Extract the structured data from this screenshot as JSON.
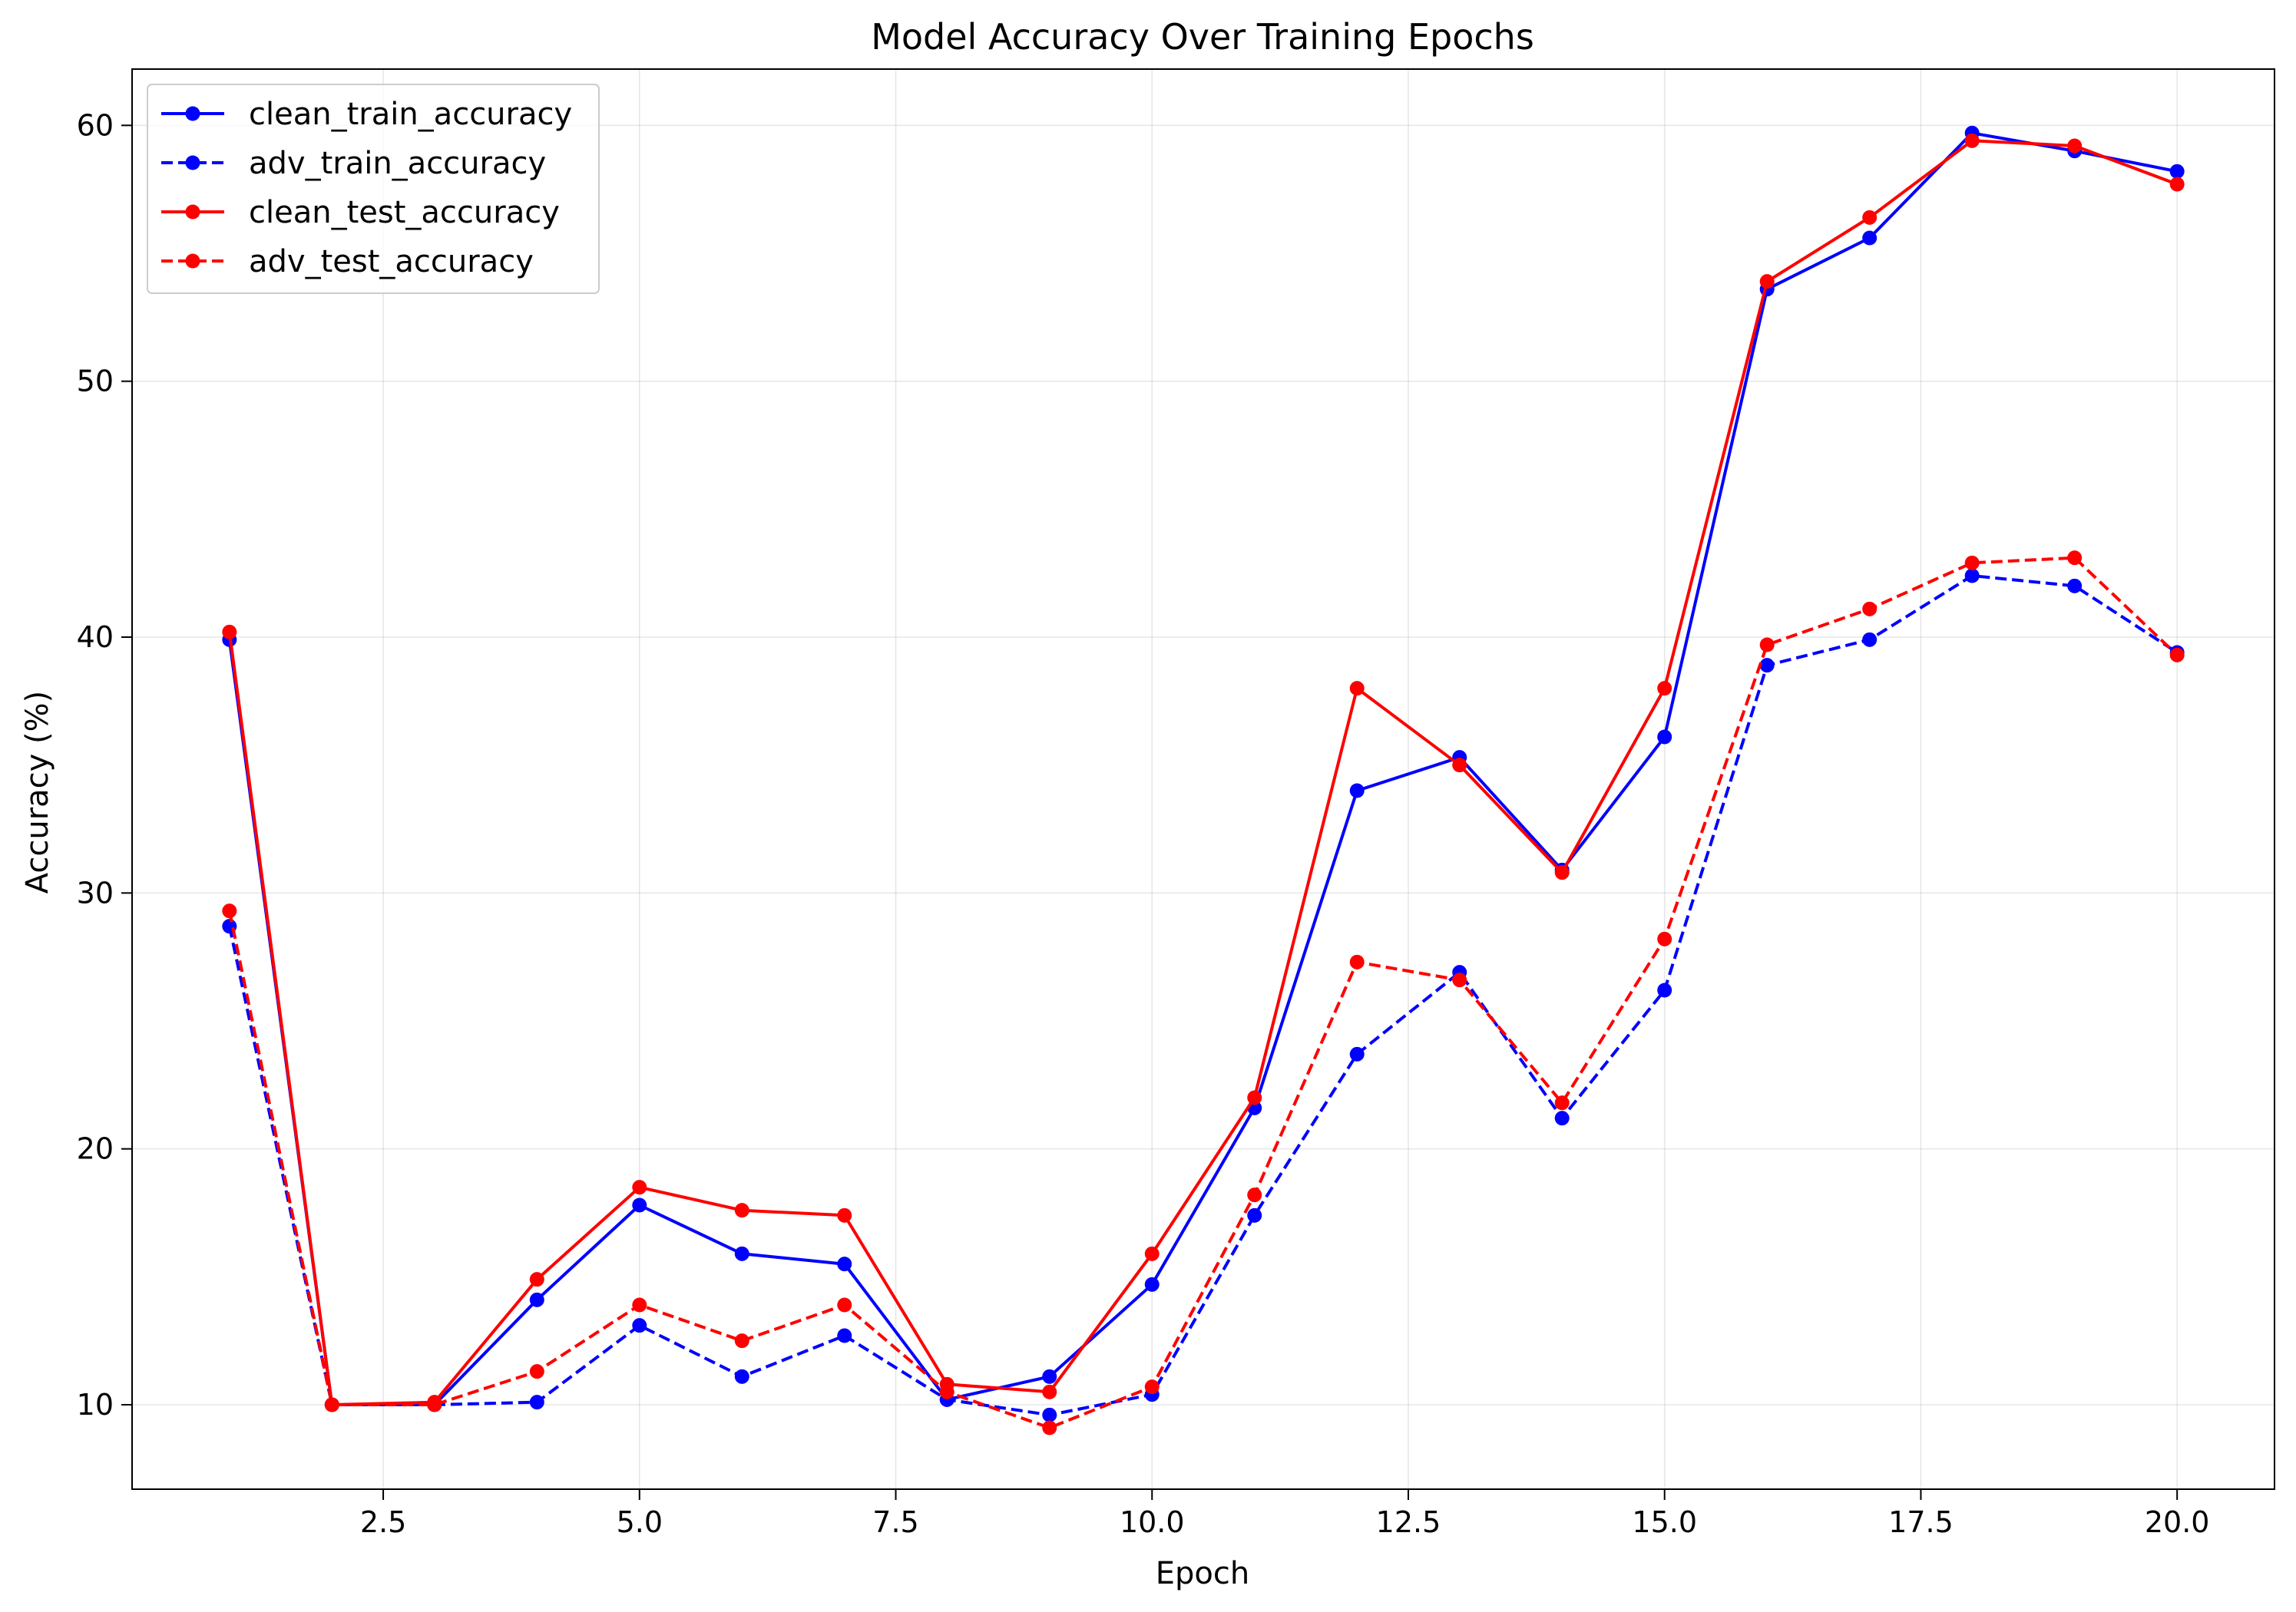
{
  "chart_data": {
    "type": "line",
    "title": "Model Accuracy Over Training Epochs",
    "xlabel": "Epoch",
    "ylabel": "Accuracy (%)",
    "xlim": [
      0.05,
      20.95
    ],
    "ylim": [
      6.7,
      62.2
    ],
    "xticks": [
      2.5,
      5.0,
      7.5,
      10.0,
      12.5,
      15.0,
      17.5,
      20.0
    ],
    "xtick_labels": [
      "2.5",
      "5.0",
      "7.5",
      "10.0",
      "12.5",
      "15.0",
      "17.5",
      "20.0"
    ],
    "yticks": [
      10,
      20,
      30,
      40,
      50,
      60
    ],
    "ytick_labels": [
      "10",
      "20",
      "30",
      "40",
      "50",
      "60"
    ],
    "grid": true,
    "legend_position": "top-left",
    "x": [
      1,
      2,
      3,
      4,
      5,
      6,
      7,
      8,
      9,
      10,
      11,
      12,
      13,
      14,
      15,
      16,
      17,
      18,
      19,
      20
    ],
    "series": [
      {
        "name": "clean_train_accuracy",
        "color": "#0000ff",
        "dash": "solid",
        "values": [
          39.9,
          10.0,
          10.0,
          14.1,
          17.8,
          15.9,
          15.5,
          10.2,
          11.1,
          14.7,
          21.6,
          34.0,
          35.3,
          30.9,
          36.1,
          53.6,
          55.6,
          59.7,
          59.0,
          58.2
        ]
      },
      {
        "name": "adv_train_accuracy",
        "color": "#0000ff",
        "dash": "dashed",
        "values": [
          28.7,
          10.0,
          10.0,
          10.1,
          13.1,
          11.1,
          12.7,
          10.2,
          9.6,
          10.4,
          17.4,
          23.7,
          26.9,
          21.2,
          26.2,
          38.9,
          39.9,
          42.4,
          42.0,
          39.4
        ]
      },
      {
        "name": "clean_test_accuracy",
        "color": "#ff0000",
        "dash": "solid",
        "values": [
          40.2,
          10.0,
          10.1,
          14.9,
          18.5,
          17.6,
          17.4,
          10.8,
          10.5,
          15.9,
          22.0,
          38.0,
          35.0,
          30.8,
          38.0,
          53.9,
          56.4,
          59.4,
          59.2,
          57.7
        ]
      },
      {
        "name": "adv_test_accuracy",
        "color": "#ff0000",
        "dash": "dashed",
        "values": [
          29.3,
          10.0,
          10.0,
          11.3,
          13.9,
          12.5,
          13.9,
          10.5,
          9.1,
          10.7,
          18.2,
          27.3,
          26.6,
          21.8,
          28.2,
          39.7,
          41.1,
          42.9,
          43.1,
          39.3
        ]
      }
    ]
  }
}
